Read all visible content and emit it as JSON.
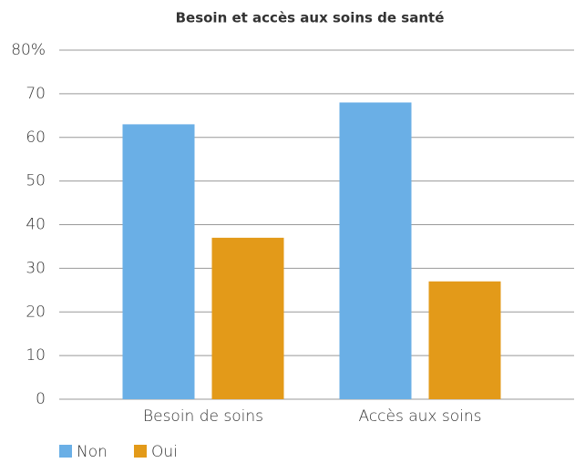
{
  "chart_data": {
    "type": "bar",
    "title": "Besoin et accès aux soins de santé",
    "categories": [
      "Besoin de soins",
      "Accès aux soins"
    ],
    "series": [
      {
        "name": "Non",
        "color": "#6aafe6",
        "values": [
          63,
          68
        ]
      },
      {
        "name": "Oui",
        "color": "#e39a19",
        "values": [
          37,
          27
        ]
      }
    ],
    "ylim": [
      0,
      80
    ],
    "yticks": [
      0,
      10,
      20,
      30,
      40,
      50,
      60,
      70,
      {
        "value": 80,
        "label": "80%"
      }
    ],
    "grid": true,
    "legend": "bottom-left"
  }
}
